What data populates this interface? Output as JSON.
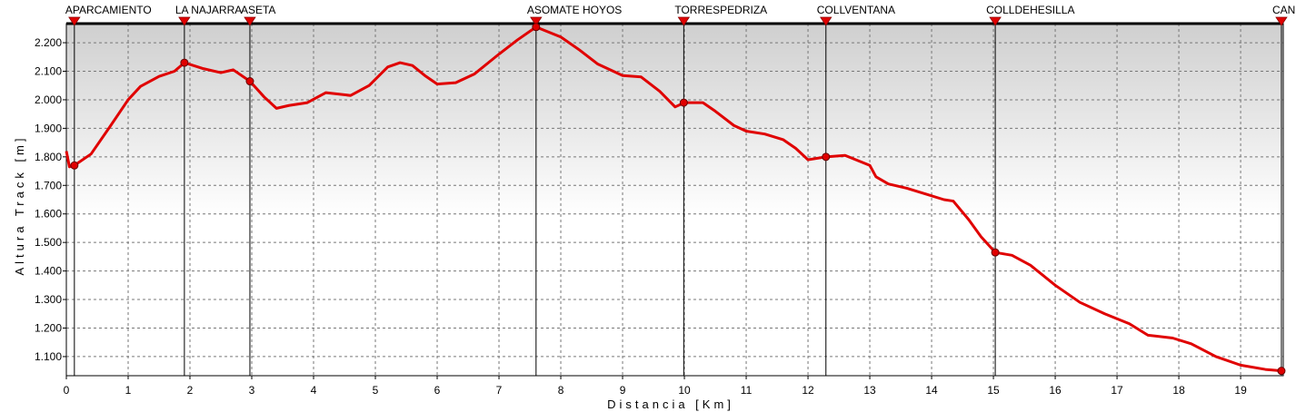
{
  "chart_data": {
    "type": "line",
    "x_label": "Distancia [Km]",
    "y_label": "Altura Track [m]",
    "xlim": [
      0,
      19.69
    ],
    "ylim": [
      1033,
      2267
    ],
    "xticks": [
      0,
      1,
      2,
      3,
      4,
      5,
      6,
      7,
      8,
      9,
      10,
      11,
      12,
      13,
      14,
      15,
      16,
      17,
      18,
      19
    ],
    "yticks": [
      {
        "value": 1100,
        "label": "1.100"
      },
      {
        "value": 1200,
        "label": "1.200"
      },
      {
        "value": 1300,
        "label": "1.300"
      },
      {
        "value": 1400,
        "label": "1.400"
      },
      {
        "value": 1500,
        "label": "1.500"
      },
      {
        "value": 1600,
        "label": "1.600"
      },
      {
        "value": 1700,
        "label": "1.700"
      },
      {
        "value": 1800,
        "label": "1.800"
      },
      {
        "value": 1900,
        "label": "1.900"
      },
      {
        "value": 2000,
        "label": "2.000"
      },
      {
        "value": 2100,
        "label": "2.100"
      },
      {
        "value": 2200,
        "label": "2.200"
      }
    ],
    "grid": true,
    "x": [
      0,
      0.05,
      0.13,
      0.4,
      0.7,
      1.0,
      1.2,
      1.5,
      1.75,
      1.91,
      2.2,
      2.5,
      2.7,
      2.97,
      3.2,
      3.4,
      3.6,
      3.9,
      4.2,
      4.6,
      4.9,
      5.2,
      5.4,
      5.6,
      5.8,
      6.0,
      6.3,
      6.6,
      7.0,
      7.3,
      7.6,
      8.0,
      8.3,
      8.6,
      9.0,
      9.3,
      9.6,
      9.85,
      10.0,
      10.3,
      10.5,
      10.8,
      11.0,
      11.3,
      11.6,
      11.8,
      12.0,
      12.29,
      12.6,
      13.0,
      13.1,
      13.3,
      13.6,
      13.9,
      14.2,
      14.35,
      14.6,
      14.8,
      15.03,
      15.3,
      15.6,
      16.0,
      16.4,
      16.8,
      17.2,
      17.5,
      17.9,
      18.2,
      18.6,
      19.0,
      19.4,
      19.66
    ],
    "series": [
      {
        "color": "#e00000",
        "values": [
          1820,
          1765,
          1770,
          1810,
          1904,
          2000,
          2047,
          2082,
          2100,
          2130,
          2110,
          2095,
          2105,
          2065,
          2010,
          1970,
          1980,
          1990,
          2025,
          2015,
          2050,
          2115,
          2130,
          2120,
          2085,
          2055,
          2060,
          2090,
          2160,
          2210,
          2255,
          2220,
          2175,
          2125,
          2085,
          2080,
          2030,
          1975,
          1990,
          1990,
          1960,
          1910,
          1890,
          1880,
          1860,
          1830,
          1790,
          1800,
          1805,
          1770,
          1730,
          1705,
          1690,
          1670,
          1650,
          1645,
          1580,
          1520,
          1465,
          1455,
          1420,
          1350,
          1290,
          1250,
          1215,
          1175,
          1165,
          1145,
          1100,
          1070,
          1055,
          1050
        ]
      }
    ],
    "waypoints": [
      {
        "label": "APARCAMIENTO",
        "x": 0.13,
        "y": 1770
      },
      {
        "label": "LA NAJARRA",
        "x": 1.91,
        "y": 2130
      },
      {
        "label": "ASETA",
        "x": 2.97,
        "y": 2065
      },
      {
        "label": "ASOMATE HOYOS",
        "x": 7.6,
        "y": 2255
      },
      {
        "label": "TORRESPEDRIZA",
        "x": 9.99,
        "y": 1990
      },
      {
        "label": "COLLVENTANA",
        "x": 12.29,
        "y": 1800
      },
      {
        "label": "COLLDEHESILLA",
        "x": 15.03,
        "y": 1465
      },
      {
        "label": "CAN",
        "x": 19.66,
        "y": 1050
      }
    ]
  }
}
